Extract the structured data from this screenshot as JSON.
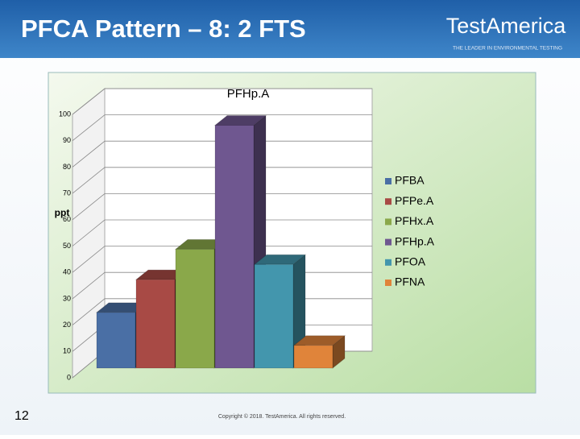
{
  "header": {
    "title": "PFCA Pattern – 8: 2 FTS"
  },
  "logo": {
    "name": "TestAmerica",
    "tagline": "THE LEADER IN ENVIRONMENTAL TESTING"
  },
  "chart_data": {
    "type": "bar3d",
    "title": "PFHp.A",
    "y_label": "ppt",
    "categories": [
      null
    ],
    "series": [
      {
        "name": "PFBA",
        "color": "#4a6fa5",
        "values": [
          22
        ]
      },
      {
        "name": "PFPe.A",
        "color": "#a84a45",
        "values": [
          35
        ]
      },
      {
        "name": "PFHx.A",
        "color": "#8aa84a",
        "values": [
          47
        ]
      },
      {
        "name": "PFHp.A",
        "color": "#6f5790",
        "values": [
          96
        ]
      },
      {
        "name": "PFOA",
        "color": "#4396ad",
        "values": [
          41
        ]
      },
      {
        "name": "PFNA",
        "color": "#e0843a",
        "values": [
          9
        ]
      }
    ],
    "ylim": [
      0,
      100
    ],
    "yticks": [
      0,
      10,
      20,
      30,
      40,
      50,
      60,
      70,
      80,
      90,
      100
    ],
    "grid": true,
    "legend": "right"
  },
  "footer": {
    "page_number": 12,
    "copyright": "Copyright © 2018. TestAmerica. All rights reserved."
  }
}
